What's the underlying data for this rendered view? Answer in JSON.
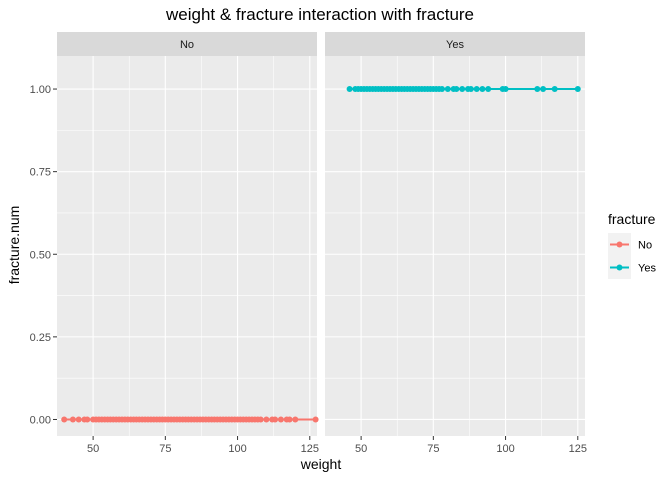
{
  "chart_data": {
    "type": "line",
    "title": "weight & fracture  interaction with fracture",
    "xlabel": "weight",
    "ylabel": "fracture.num",
    "xlim": [
      37.5,
      127.5
    ],
    "ylim": [
      -0.05,
      1.1
    ],
    "x_ticks": [
      50,
      75,
      100,
      125
    ],
    "y_ticks": [
      0.0,
      0.25,
      0.5,
      0.75,
      1.0
    ],
    "x_tick_labels": [
      "50",
      "75",
      "100",
      "125"
    ],
    "y_tick_labels": [
      "0.00",
      "0.25",
      "0.50",
      "0.75",
      "1.00"
    ],
    "grid": true,
    "legend": {
      "title": "fracture",
      "position": "right",
      "entries": [
        {
          "label": "No",
          "color": "#F8766D"
        },
        {
          "label": "Yes",
          "color": "#00BFC4"
        }
      ]
    },
    "facets": [
      {
        "label": "No",
        "series": [
          {
            "name": "No",
            "color": "#F8766D",
            "x": [
              40,
              43,
              45,
              47,
              48,
              50,
              51,
              52,
              53,
              54,
              55,
              56,
              57,
              58,
              59,
              60,
              61,
              62,
              63,
              64,
              65,
              66,
              67,
              68,
              69,
              70,
              71,
              72,
              73,
              74,
              75,
              76,
              77,
              78,
              79,
              80,
              81,
              82,
              83,
              84,
              85,
              86,
              87,
              88,
              89,
              90,
              91,
              92,
              93,
              94,
              95,
              96,
              97,
              98,
              99,
              100,
              101,
              102,
              103,
              104,
              105,
              106,
              107,
              108,
              110,
              112,
              113,
              115,
              117,
              118,
              120,
              127
            ],
            "y": [
              0,
              0,
              0,
              0,
              0,
              0,
              0,
              0,
              0,
              0,
              0,
              0,
              0,
              0,
              0,
              0,
              0,
              0,
              0,
              0,
              0,
              0,
              0,
              0,
              0,
              0,
              0,
              0,
              0,
              0,
              0,
              0,
              0,
              0,
              0,
              0,
              0,
              0,
              0,
              0,
              0,
              0,
              0,
              0,
              0,
              0,
              0,
              0,
              0,
              0,
              0,
              0,
              0,
              0,
              0,
              0,
              0,
              0,
              0,
              0,
              0,
              0,
              0,
              0,
              0,
              0,
              0,
              0,
              0,
              0,
              0,
              0
            ]
          }
        ]
      },
      {
        "label": "Yes",
        "series": [
          {
            "name": "Yes",
            "color": "#00BFC4",
            "x": [
              46,
              48,
              49,
              50,
              51,
              52,
              53,
              54,
              55,
              56,
              57,
              58,
              59,
              60,
              61,
              62,
              63,
              64,
              65,
              66,
              67,
              68,
              69,
              70,
              71,
              72,
              73,
              74,
              75,
              76,
              77,
              78,
              80,
              82,
              83,
              85,
              87,
              88,
              90,
              92,
              94,
              99,
              100,
              111,
              113,
              117,
              125
            ],
            "y": [
              1,
              1,
              1,
              1,
              1,
              1,
              1,
              1,
              1,
              1,
              1,
              1,
              1,
              1,
              1,
              1,
              1,
              1,
              1,
              1,
              1,
              1,
              1,
              1,
              1,
              1,
              1,
              1,
              1,
              1,
              1,
              1,
              1,
              1,
              1,
              1,
              1,
              1,
              1,
              1,
              1,
              1,
              1,
              1,
              1,
              1,
              1
            ]
          }
        ]
      }
    ]
  }
}
